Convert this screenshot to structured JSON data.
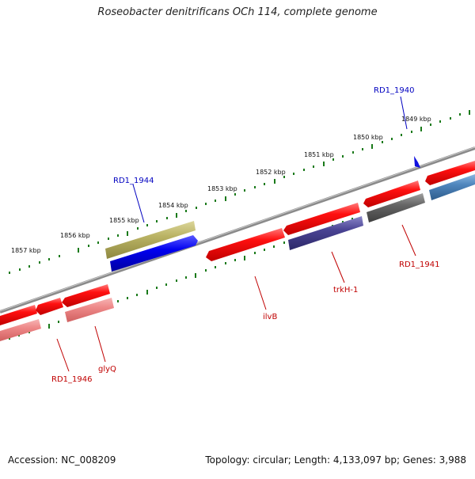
{
  "title": "Roseobacter denitrificans OCh 114, complete genome",
  "footer": {
    "accession": "Accession: NC_008209",
    "info": "Topology: circular; Length: 4,133,097 bp; Genes: 3,988"
  },
  "scale_labels": [
    "1849 kbp",
    "1850 kbp",
    "1851 kbp",
    "1852 kbp",
    "1853 kbp",
    "1854 kbp",
    "1855 kbp",
    "1856 kbp",
    "1857 kbp"
  ],
  "gene_labels": {
    "rd1_1940": "RD1_1940",
    "rd1_1944": "RD1_1944",
    "rd1_1941": "RD1_1941",
    "trkh": "trkH-1",
    "ilvb": "ilvB",
    "glyq": "glyQ",
    "rd1_1946": "RD1_1946"
  },
  "colors": {
    "backbone": "#808080",
    "tick": "#1a7a1a",
    "forward_gene": "#e60000",
    "pale_gene": "#e98080",
    "olive_gene": "#b8b060",
    "blue_gene": "#0000e0",
    "purple_gene": "#4a4494",
    "gray_gene": "#666666",
    "steel_gene": "#4f86bd",
    "label_blue": "#0000c0",
    "label_red": "#c00000"
  }
}
